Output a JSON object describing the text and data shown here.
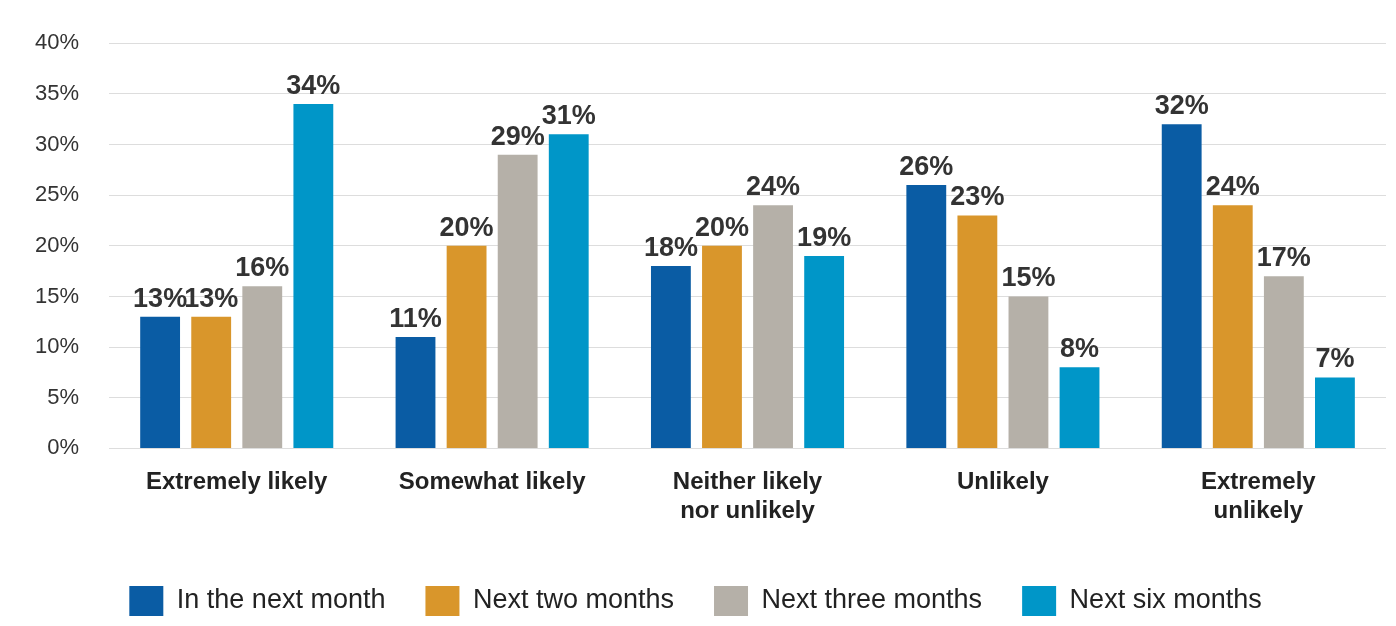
{
  "chart_data": {
    "type": "bar",
    "categories": [
      "Extremely likely",
      "Somewhat likely",
      "Neither likely nor unlikely",
      "Unlikely",
      "Extremely unlikely"
    ],
    "series": [
      {
        "name": "In the next month",
        "color": "#0a5ca4",
        "values": [
          13,
          11,
          18,
          26,
          32
        ],
        "value_labels": [
          "13%",
          "11%",
          "18%",
          "26%",
          "32%"
        ]
      },
      {
        "name": "Next two months",
        "color": "#d9962b",
        "values": [
          13,
          20,
          20,
          23,
          24
        ],
        "value_labels": [
          "13%",
          "20%",
          "20%",
          "23%",
          "24%"
        ]
      },
      {
        "name": "Next three months",
        "color": "#b5b0a8",
        "values": [
          16,
          29,
          24,
          15,
          17
        ],
        "value_labels": [
          "16%",
          "29%",
          "24%",
          "15%",
          "17%"
        ]
      },
      {
        "name": "Next six months",
        "color": "#0096c8",
        "values": [
          34,
          31,
          19,
          8,
          7
        ],
        "value_labels": [
          "34%",
          "31%",
          "19%",
          "8%",
          "7%"
        ]
      }
    ],
    "ylim": [
      0,
      40
    ],
    "yticks": [
      {
        "value": 0,
        "label": "0%"
      },
      {
        "value": 5,
        "label": "5%"
      },
      {
        "value": 10,
        "label": "10%"
      },
      {
        "value": 15,
        "label": "15%"
      },
      {
        "value": 20,
        "label": "20%"
      },
      {
        "value": 25,
        "label": "25%"
      },
      {
        "value": 30,
        "label": "30%"
      },
      {
        "value": 35,
        "label": "35%"
      },
      {
        "value": 40,
        "label": "40%"
      }
    ],
    "grid": "y",
    "legend": "bottom"
  }
}
